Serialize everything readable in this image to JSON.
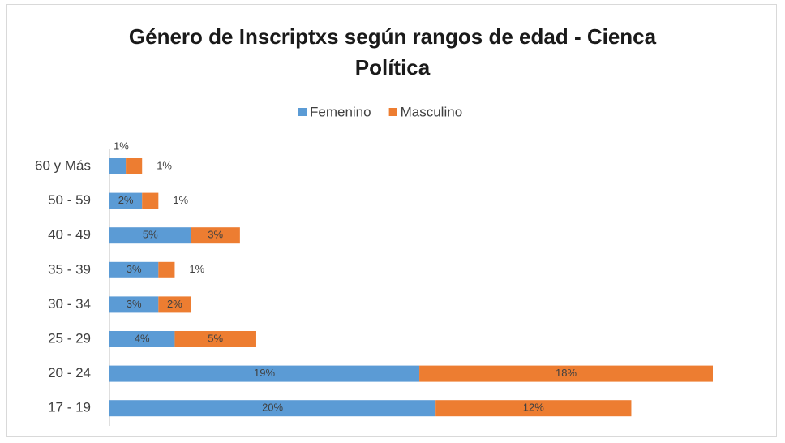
{
  "chart_data": {
    "type": "stacked-barh",
    "title": "Género de Inscriptxs según rangos de edad - Cienca Política",
    "categories": [
      "60 y Más",
      "50 - 59",
      "40 - 49",
      "35 - 39",
      "30 - 34",
      "25 - 29",
      "20 - 24",
      "17 - 19"
    ],
    "series": [
      {
        "name": "Femenino",
        "color": "#5b9bd5",
        "values": [
          1,
          2,
          5,
          3,
          3,
          4,
          19,
          20
        ],
        "value_labels": [
          "1%",
          "2%",
          "5%",
          "3%",
          "3%",
          "4%",
          "19%",
          "20%"
        ]
      },
      {
        "name": "Masculino",
        "color": "#ed7d31",
        "values": [
          1,
          1,
          3,
          1,
          2,
          5,
          18,
          12
        ],
        "value_labels": [
          "1%",
          "1%",
          "3%",
          "1%",
          "2%",
          "5%",
          "18%",
          "12%"
        ]
      }
    ],
    "legend": "top"
  }
}
